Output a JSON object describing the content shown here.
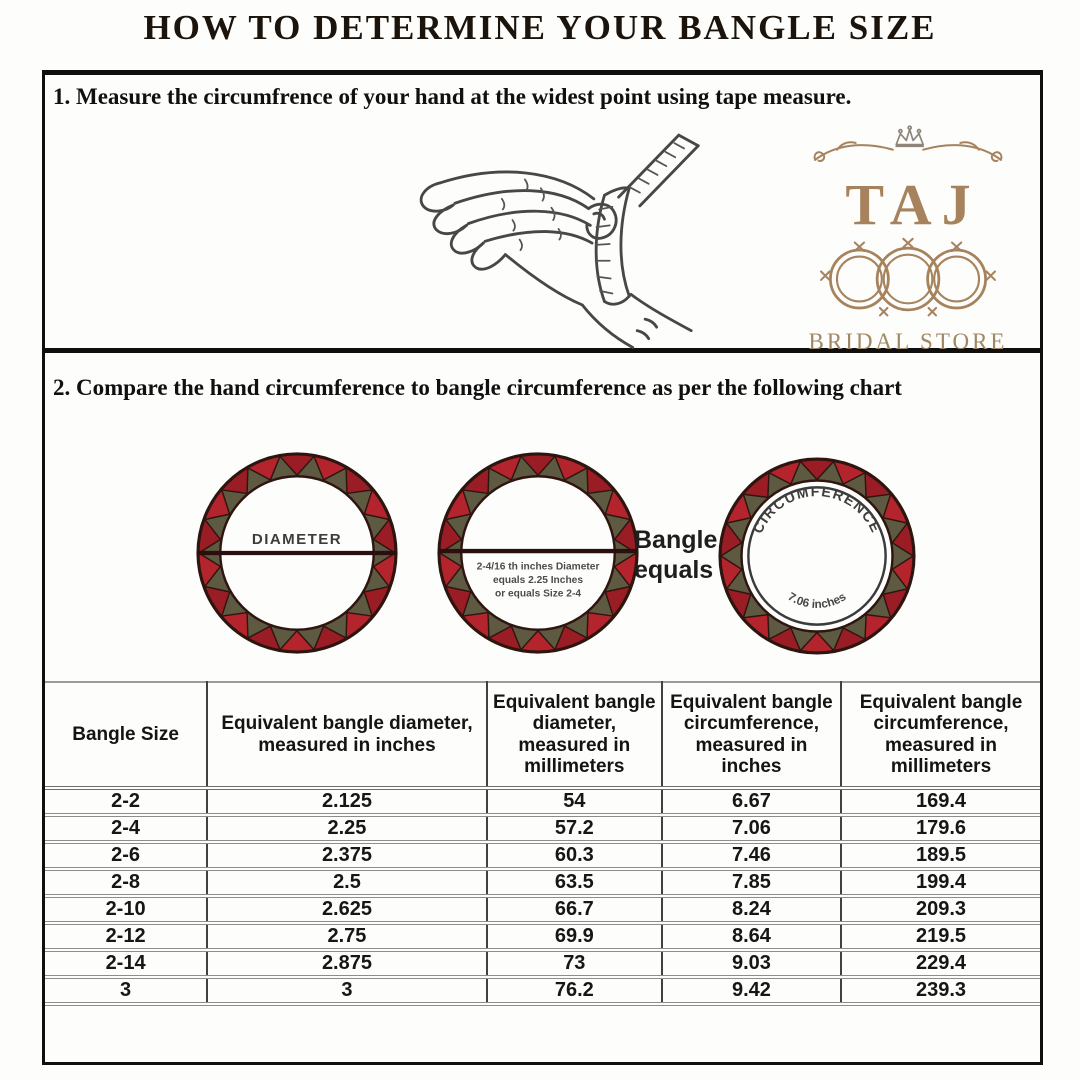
{
  "title": "HOW TO DETERMINE YOUR BANGLE SIZE",
  "steps": {
    "step1": "1. Measure the circumfrence of your hand at the widest point using tape measure.",
    "step2": "2. Compare the hand circumference to bangle circumference as per the following chart"
  },
  "logo": {
    "name": "TAJ",
    "subtitle": "BRIDAL STORE"
  },
  "diagram": {
    "diameter_label": "DIAMETER",
    "bangle2_note": [
      "2-4/16 th inches Diameter",
      "equals 2.25 Inches",
      "or equals Size 2-4"
    ],
    "equals_line1": "Bangle",
    "equals_line2": "equals",
    "circumference_label": "CIRCUMFERENCE",
    "circumference_value": "7.06 inches"
  },
  "table": {
    "columns": [
      "Bangle Size",
      "Equivalent bangle diameter, measured in inches",
      "Equivalent bangle diameter, measured in millimeters",
      "Equivalent bangle circumference, measured in inches",
      "Equivalent bangle circumference, measured in millimeters"
    ],
    "rows": [
      [
        "2-2",
        "2.125",
        "54",
        "6.67",
        "169.4"
      ],
      [
        "2-4",
        "2.25",
        "57.2",
        "7.06",
        "179.6"
      ],
      [
        "2-6",
        "2.375",
        "60.3",
        "7.46",
        "189.5"
      ],
      [
        "2-8",
        "2.5",
        "63.5",
        "7.85",
        "199.4"
      ],
      [
        "2-10",
        "2.625",
        "66.7",
        "8.24",
        "209.3"
      ],
      [
        "2-12",
        "2.75",
        "69.9",
        "8.64",
        "219.5"
      ],
      [
        "2-14",
        "2.875",
        "73",
        "9.03",
        "229.4"
      ],
      [
        "3",
        "3",
        "76.2",
        "9.42",
        "239.3"
      ]
    ]
  },
  "colors": {
    "bangle_red": "#b3242d",
    "bangle_red_dark": "#9a1d25",
    "bangle_olive": "#5d5a41",
    "bangle_outline": "#2e150f",
    "diameter_line": "#2b0e0e",
    "logo_tan": "#a6835d",
    "logo_tan_dim": "#a18764"
  }
}
